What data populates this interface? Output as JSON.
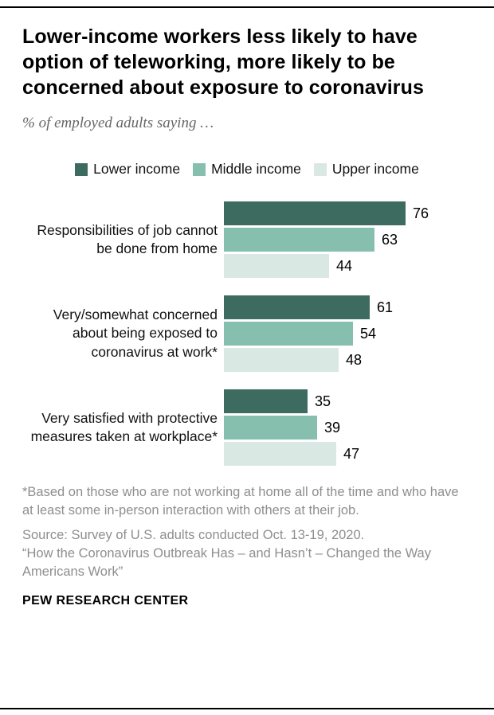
{
  "header": {
    "title": "Lower-income workers less likely to have option of teleworking, more likely to be concerned about exposure to coronavirus",
    "subtitle": "% of employed adults saying …"
  },
  "legend": [
    {
      "label": "Lower income",
      "color": "#3d6b60"
    },
    {
      "label": "Middle income",
      "color": "#87bfae"
    },
    {
      "label": "Upper income",
      "color": "#d9e8e2"
    }
  ],
  "chart_data": {
    "type": "bar",
    "orientation": "horizontal",
    "categories": [
      "Responsibilities of job cannot be done from home",
      "Very/somewhat concerned about being exposed to coronavirus at work*",
      "Very satisfied with protective measures taken at workplace*"
    ],
    "series": [
      {
        "name": "Lower income",
        "color": "#3d6b60",
        "values": [
          76,
          61,
          35
        ]
      },
      {
        "name": "Middle income",
        "color": "#87bfae",
        "values": [
          63,
          54,
          39
        ]
      },
      {
        "name": "Upper income",
        "color": "#d9e8e2",
        "values": [
          44,
          48,
          47
        ]
      }
    ],
    "xlim": [
      0,
      100
    ],
    "value_labels": true,
    "legend_position": "top"
  },
  "footnotes": {
    "note": "*Based on those who are not working at home all of the time and who have at least some in-person interaction with others at their job.",
    "source": "Source: Survey of U.S. adults conducted Oct. 13-19, 2020.",
    "report": "“How the Coronavirus Outbreak Has – and Hasn’t – Changed the Way Americans Work”",
    "brand": "PEW RESEARCH CENTER"
  }
}
